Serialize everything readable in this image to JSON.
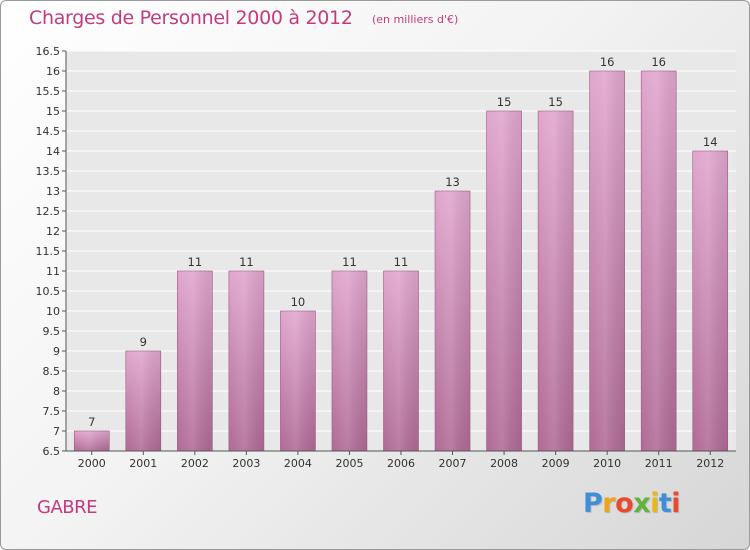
{
  "title": "Charges de Personnel 2000 à 2012",
  "subtitle": "(en milliers d'€)",
  "commune": "GABRE",
  "brand": {
    "text": "Proxiti",
    "letter_colors": [
      "#3f8fd6",
      "#f0a21a",
      "#e84a2f",
      "#63b33a",
      "#e8b81a",
      "#3f8fd6",
      "#e84a2f"
    ]
  },
  "chart_data": {
    "type": "bar",
    "categories": [
      "2000",
      "2001",
      "2002",
      "2003",
      "2004",
      "2005",
      "2006",
      "2007",
      "2008",
      "2009",
      "2010",
      "2011",
      "2012"
    ],
    "values": [
      7,
      9,
      11,
      11,
      10,
      11,
      11,
      13,
      15,
      15,
      16,
      16,
      14
    ],
    "data_labels": [
      "7",
      "9",
      "11",
      "11",
      "10",
      "11",
      "11",
      "13",
      "15",
      "15",
      "16",
      "16",
      "14"
    ],
    "ylim": [
      6.5,
      16.5
    ],
    "yticks": [
      "6.5",
      "7",
      "7.5",
      "8",
      "8.5",
      "9",
      "9.5",
      "10",
      "10.5",
      "11",
      "11.5",
      "12",
      "12.5",
      "13",
      "13.5",
      "14",
      "14.5",
      "15",
      "15.5",
      "16",
      "16.5"
    ],
    "grid": true,
    "bar_color": "#cc7fae"
  }
}
